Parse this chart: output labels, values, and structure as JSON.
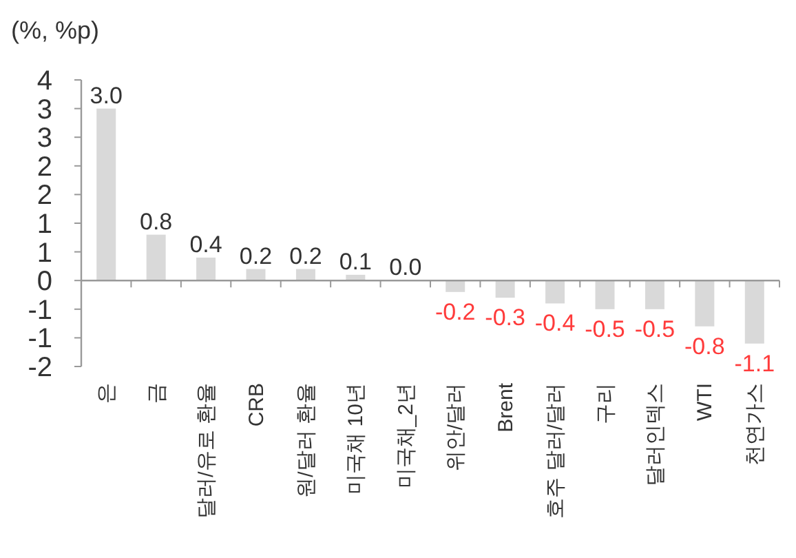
{
  "chart_data": {
    "type": "bar",
    "title": "(%, %p)",
    "categories": [
      "은",
      "금",
      "달러/유로 환율",
      "CRB",
      "원/달러 환율",
      "미국채 10년",
      "미국채_2년",
      "위안/달러",
      "Brent",
      "호주 달러/달러",
      "구리",
      "달러인덱스",
      "WTI",
      "천연가스"
    ],
    "values": [
      3.0,
      0.8,
      0.4,
      0.2,
      0.2,
      0.1,
      0.0,
      -0.2,
      -0.3,
      -0.4,
      -0.5,
      -0.5,
      -0.8,
      -1.1
    ],
    "color": "#d9d9d9",
    "ylim": [
      -1.5,
      3.5
    ],
    "yticks": [
      {
        "value": 3.5,
        "label": "4"
      },
      {
        "value": 3.0,
        "label": "3"
      },
      {
        "value": 2.5,
        "label": "3"
      },
      {
        "value": 2.0,
        "label": "2"
      },
      {
        "value": 1.5,
        "label": "2"
      },
      {
        "value": 1.0,
        "label": "1"
      },
      {
        "value": 0.5,
        "label": "1"
      },
      {
        "value": 0,
        "label": "0"
      },
      {
        "value": -0.5,
        "label": "-1"
      },
      {
        "value": -1.0,
        "label": "-1"
      },
      {
        "value": -1.5,
        "label": "-2"
      }
    ],
    "value_labels": [
      "3.0",
      "0.8",
      "0.4",
      "0.2",
      "0.2",
      "0.1",
      "0.0",
      "-0.2",
      "-0.3",
      "-0.4",
      "-0.5",
      "-0.5",
      "-0.8",
      "-1.1"
    ]
  }
}
